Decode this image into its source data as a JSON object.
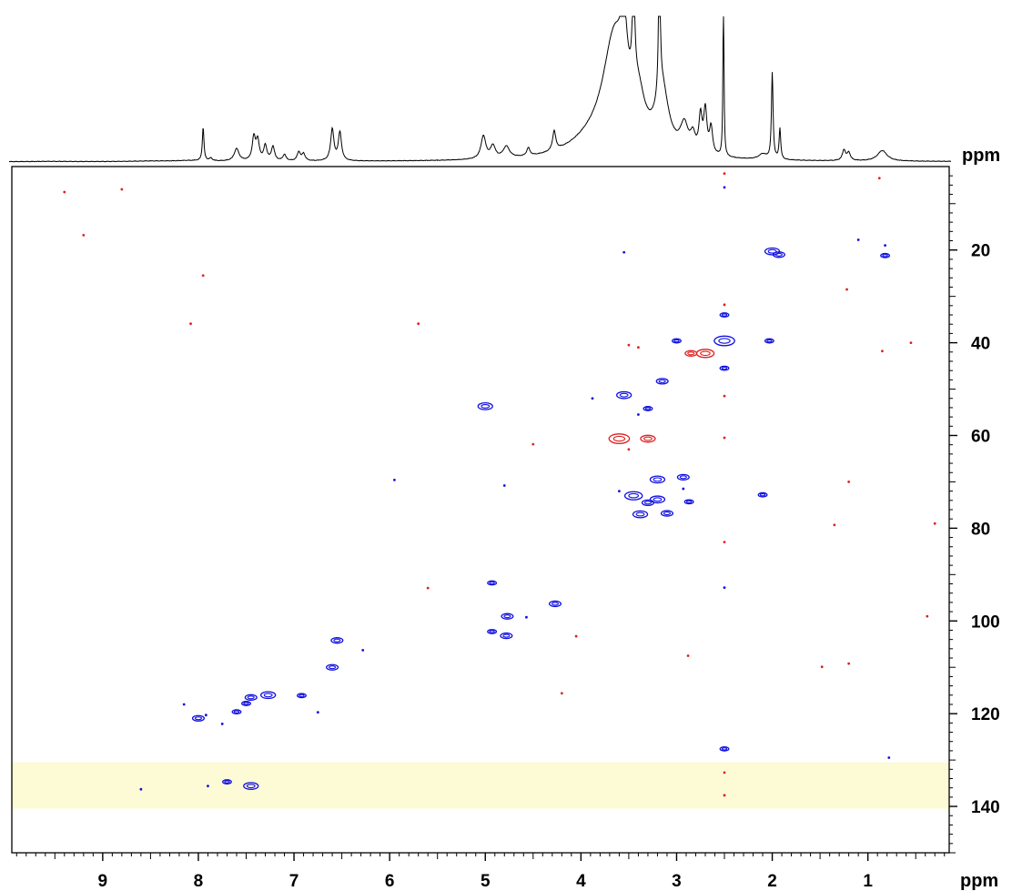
{
  "chart_data": {
    "type": "scatter",
    "subtype": "2D NMR HSQC spectrum with 1D projection",
    "x_axis": {
      "label": "ppm",
      "range": [
        9.95,
        0.15
      ],
      "reversed": true,
      "ticks": [
        9,
        8,
        7,
        6,
        5,
        4,
        3,
        2,
        1
      ],
      "tick_labels": [
        "9",
        "8",
        "7",
        "6",
        "5",
        "4",
        "3",
        "2",
        "1"
      ]
    },
    "y_axis": {
      "label": "ppm",
      "range": [
        2,
        150
      ],
      "side": "right",
      "ticks": [
        20,
        40,
        60,
        80,
        100,
        120,
        140
      ],
      "tick_labels": [
        "20",
        "40",
        "60",
        "80",
        "100",
        "120",
        "140"
      ]
    },
    "highlight_band": {
      "y_range": [
        130.5,
        140.5
      ],
      "color": "#fdfad6"
    },
    "colors": {
      "positive": "#1010e0",
      "negative": "#e02020",
      "band": "#fdfad6",
      "spectrum": "#000000"
    },
    "grid": false,
    "series": [
      {
        "name": "",
        "color": "#1010e0",
        "points": [
          [
            2.0,
            20.3,
            5
          ],
          [
            1.93,
            21.0,
            4
          ],
          [
            0.82,
            21.2,
            3
          ],
          [
            1.1,
            17.8,
            2
          ],
          [
            0.82,
            19.0,
            1.5
          ],
          [
            2.5,
            39.6,
            7
          ],
          [
            2.5,
            34.0,
            3
          ],
          [
            2.5,
            45.5,
            3
          ],
          [
            3.0,
            39.6,
            3
          ],
          [
            2.03,
            39.6,
            3
          ],
          [
            3.15,
            48.3,
            4
          ],
          [
            3.55,
            51.3,
            5
          ],
          [
            3.88,
            52.0,
            2
          ],
          [
            3.3,
            54.2,
            3
          ],
          [
            5.0,
            53.7,
            5
          ],
          [
            3.4,
            55.5,
            2
          ],
          [
            3.2,
            69.5,
            5
          ],
          [
            2.93,
            69.0,
            4
          ],
          [
            3.45,
            73.0,
            6
          ],
          [
            3.2,
            73.8,
            5
          ],
          [
            3.3,
            74.5,
            4
          ],
          [
            3.38,
            77.0,
            5
          ],
          [
            3.1,
            76.8,
            4
          ],
          [
            2.87,
            74.3,
            3
          ],
          [
            2.93,
            71.5,
            2
          ],
          [
            3.6,
            72.0,
            2
          ],
          [
            2.1,
            72.8,
            3
          ],
          [
            4.8,
            70.8,
            1.5
          ],
          [
            5.95,
            69.6,
            1.5
          ],
          [
            4.93,
            91.8,
            3
          ],
          [
            4.27,
            96.3,
            4
          ],
          [
            4.77,
            99.0,
            4
          ],
          [
            4.57,
            99.2,
            2
          ],
          [
            4.93,
            102.3,
            3
          ],
          [
            4.78,
            103.2,
            4
          ],
          [
            2.5,
            92.8,
            2
          ],
          [
            6.55,
            104.2,
            4
          ],
          [
            6.28,
            106.3,
            2
          ],
          [
            6.6,
            110.0,
            4
          ],
          [
            7.27,
            116.0,
            5
          ],
          [
            7.45,
            116.5,
            4
          ],
          [
            6.92,
            116.1,
            3
          ],
          [
            7.5,
            117.8,
            3
          ],
          [
            7.6,
            119.6,
            3
          ],
          [
            8.0,
            121.0,
            4
          ],
          [
            7.92,
            120.3,
            2
          ],
          [
            7.75,
            122.2,
            1.5
          ],
          [
            6.75,
            119.7,
            1.5
          ],
          [
            8.15,
            118.0,
            1.5
          ],
          [
            7.45,
            135.6,
            5
          ],
          [
            7.7,
            134.7,
            3
          ],
          [
            7.9,
            135.6,
            2
          ],
          [
            8.6,
            136.3,
            2
          ],
          [
            2.5,
            127.6,
            3
          ],
          [
            0.78,
            129.5,
            1.5
          ],
          [
            2.5,
            6.5,
            1.5
          ],
          [
            3.55,
            20.5,
            1.5
          ]
        ]
      },
      {
        "name": "",
        "color": "#e02020",
        "points": [
          [
            2.7,
            42.3,
            6
          ],
          [
            2.85,
            42.3,
            4
          ],
          [
            3.6,
            60.7,
            7
          ],
          [
            3.3,
            60.7,
            5
          ],
          [
            3.5,
            63.0,
            2
          ],
          [
            2.5,
            31.8,
            2
          ],
          [
            2.5,
            3.5,
            1.5
          ],
          [
            2.5,
            51.5,
            1.5
          ],
          [
            2.5,
            60.5,
            1.5
          ],
          [
            3.5,
            40.5,
            2
          ],
          [
            3.4,
            41.0,
            1.5
          ],
          [
            1.22,
            28.5,
            2
          ],
          [
            0.55,
            40.0,
            2
          ],
          [
            0.85,
            41.8,
            1.5
          ],
          [
            8.08,
            35.9,
            2
          ],
          [
            8.8,
            6.9,
            1.5
          ],
          [
            9.2,
            16.8,
            1.5
          ],
          [
            9.4,
            7.5,
            1.5
          ],
          [
            7.95,
            25.5,
            1.5
          ],
          [
            5.7,
            35.9,
            1.5
          ],
          [
            4.5,
            61.9,
            1.5
          ],
          [
            5.6,
            92.9,
            1.5
          ],
          [
            4.2,
            115.6,
            1.5
          ],
          [
            4.05,
            103.3,
            1.5
          ],
          [
            2.5,
            83.0,
            1.5
          ],
          [
            2.5,
            132.7,
            2
          ],
          [
            2.5,
            137.6,
            2
          ],
          [
            2.88,
            107.5,
            1.5
          ],
          [
            1.2,
            70.0,
            1.5
          ],
          [
            1.48,
            109.9,
            1.5
          ],
          [
            1.2,
            109.2,
            1.5
          ],
          [
            1.35,
            79.3,
            1.5
          ],
          [
            0.38,
            99.0,
            1.5
          ],
          [
            0.3,
            79.0,
            1.5
          ],
          [
            0.88,
            4.5,
            1.5
          ]
        ]
      }
    ],
    "projection_peaks": [
      [
        9.55,
        0.3,
        0.2
      ],
      [
        8.5,
        0.5,
        0.2
      ],
      [
        8.1,
        1.0,
        0.2
      ],
      [
        7.95,
        38.0,
        0.01
      ],
      [
        7.87,
        3.0,
        0.02
      ],
      [
        7.6,
        14.0,
        0.03
      ],
      [
        7.42,
        26.0,
        0.02
      ],
      [
        7.38,
        22.0,
        0.02
      ],
      [
        7.3,
        17.0,
        0.02
      ],
      [
        7.22,
        16.0,
        0.02
      ],
      [
        7.1,
        7.0,
        0.02
      ],
      [
        6.95,
        10.0,
        0.02
      ],
      [
        6.9,
        8.0,
        0.02
      ],
      [
        6.6,
        36.0,
        0.02
      ],
      [
        6.52,
        32.0,
        0.02
      ],
      [
        5.02,
        26.0,
        0.03
      ],
      [
        4.92,
        14.0,
        0.03
      ],
      [
        4.78,
        13.0,
        0.04
      ],
      [
        4.55,
        9.0,
        0.02
      ],
      [
        4.28,
        22.0,
        0.02
      ],
      [
        3.9,
        14.0,
        0.3
      ],
      [
        3.65,
        130.0,
        0.15
      ],
      [
        3.55,
        75.0,
        0.04
      ],
      [
        3.4,
        45.0,
        0.08
      ],
      [
        3.15,
        70.0,
        0.08
      ],
      [
        3.45,
        120.0,
        0.015
      ],
      [
        3.18,
        170.0,
        0.01
      ],
      [
        2.92,
        30.0,
        0.05
      ],
      [
        2.75,
        40.0,
        0.02
      ],
      [
        2.7,
        48.0,
        0.02
      ],
      [
        2.64,
        30.0,
        0.02
      ],
      [
        2.83,
        18.0,
        0.03
      ],
      [
        2.51,
        200.0,
        0.006
      ],
      [
        2.0,
        98.0,
        0.01
      ],
      [
        1.92,
        35.0,
        0.01
      ],
      [
        2.1,
        6.0,
        0.05
      ],
      [
        1.25,
        12.0,
        0.02
      ],
      [
        1.2,
        9.0,
        0.02
      ],
      [
        0.85,
        12.0,
        0.06
      ]
    ]
  },
  "axis_unit_top": "ppm",
  "axis_unit_bottom": "ppm"
}
